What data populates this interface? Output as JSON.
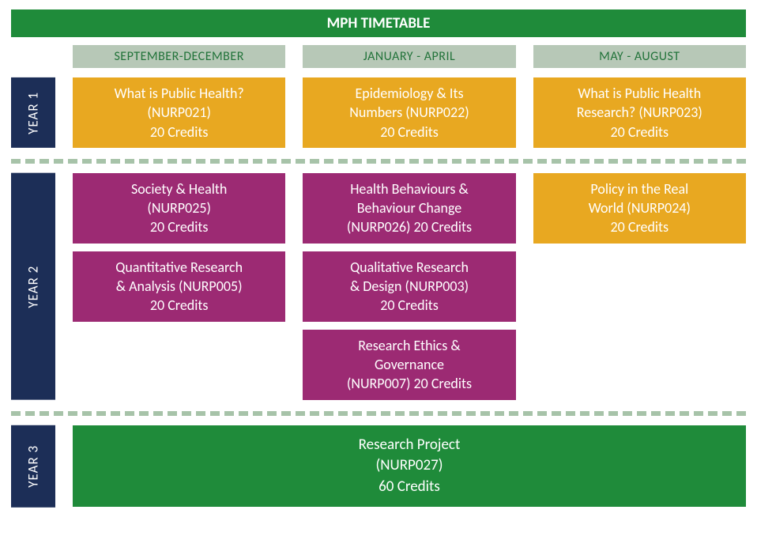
{
  "title": "MPH TIMETABLE",
  "colors": {
    "title_bg": "#1f8b3a",
    "title_fg": "#ffffff",
    "header_bg": "#b7c8b7",
    "header_fg": "#22733a",
    "year_bg": "#1c2e57",
    "year_fg": "#ffffff",
    "module_orange_bg": "#e8a821",
    "module_orange_fg": "#ffffff",
    "module_magenta_bg": "#9c2a73",
    "module_magenta_fg": "#ffffff",
    "project_bg": "#1f8b3a",
    "project_fg": "#ffffff",
    "divider": "#a7c3a9"
  },
  "fontsizes": {
    "title": 19,
    "header": 16,
    "year": 17,
    "module": 18,
    "project": 19
  },
  "terms": [
    "SEPTEMBER-DECEMBER",
    "JANUARY - APRIL",
    "MAY - AUGUST"
  ],
  "year1": {
    "label": "YEAR 1",
    "cols": [
      [
        {
          "l1": "What is Public Health?",
          "l2": "(NURP021)",
          "l3": "20 Credits",
          "kind": "orange"
        }
      ],
      [
        {
          "l1": "Epidemiology & Its",
          "l2": "Numbers (NURP022)",
          "l3": "20 Credits",
          "kind": "orange"
        }
      ],
      [
        {
          "l1": "What is Public Health",
          "l2": "Research? (NURP023)",
          "l3": "20 Credits",
          "kind": "orange"
        }
      ]
    ]
  },
  "year2": {
    "label": "YEAR 2",
    "cols": [
      [
        {
          "l1": "Society & Health",
          "l2": "(NURP025)",
          "l3": "20 Credits",
          "kind": "magenta"
        },
        {
          "l1": "Quantitative Research",
          "l2": "& Analysis (NURP005)",
          "l3": "20 Credits",
          "kind": "magenta"
        }
      ],
      [
        {
          "l1": "Health Behaviours &",
          "l2": "Behaviour Change",
          "l3": "(NURP026) 20 Credits",
          "kind": "magenta"
        },
        {
          "l1": "Qualitative Research",
          "l2": "& Design (NURP003)",
          "l3": "20 Credits",
          "kind": "magenta"
        },
        {
          "l1": "Research Ethics &",
          "l2": "Governance",
          "l3": "(NURP007) 20 Credits",
          "kind": "magenta"
        }
      ],
      [
        {
          "l1": "Policy in the Real",
          "l2": "World (NURP024)",
          "l3": "20 Credits",
          "kind": "orange"
        }
      ]
    ]
  },
  "year3": {
    "label": "YEAR 3",
    "project": {
      "l1": "Research Project",
      "l2": "(NURP027)",
      "l3": "60 Credits"
    }
  }
}
